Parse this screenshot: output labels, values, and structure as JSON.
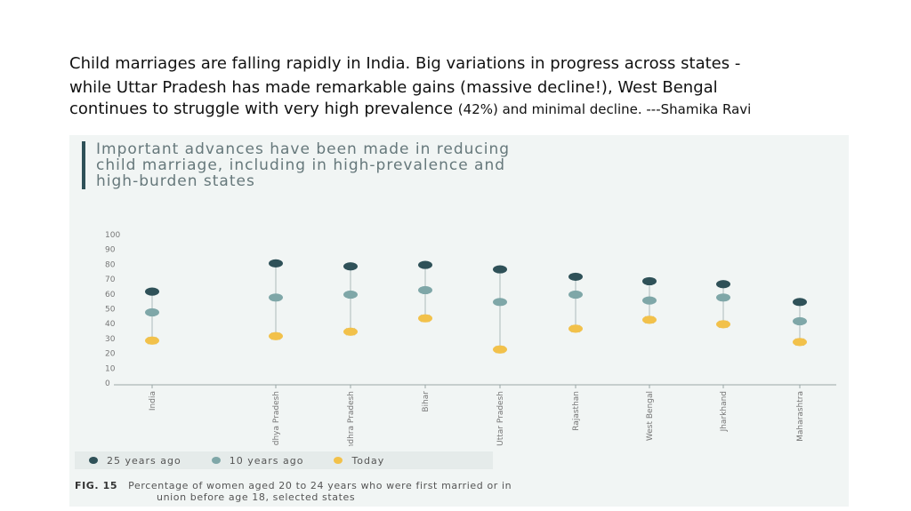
{
  "caption": {
    "line1": "Child marriages are falling rapidly in India.  Big variations in progress across states -",
    "line2": "while Uttar Pradesh has made remarkable gains (massive decline!), West Bengal",
    "line3_a": "continues to struggle with very high prevalence ",
    "line3_b": "(42%) and minimal decline. ---Shamika Ravi"
  },
  "figure": {
    "title_lines": [
      "Important advances have been made in reducing",
      "child marriage, including in high-prevalence and",
      "high-burden states"
    ],
    "caption_label": "FIG. 15",
    "caption_line1": "Percentage of women aged 20 to 24 years who were first married or in",
    "caption_line2": "union before age 18, selected states"
  },
  "colors": {
    "series_25": "#2f5158",
    "series_10": "#7fa7a8",
    "series_today": "#f2c14a",
    "stem": "#b9c4c4",
    "axis": "#9aa6a6",
    "tick_text": "#777777"
  },
  "chart_data": {
    "type": "scatter",
    "categories": [
      "India",
      "Madhya Pradesh",
      "Andhra Pradesh",
      "Bihar",
      "Uttar Pradesh",
      "Rajasthan",
      "West Bengal",
      "Jharkhand",
      "Maharashtra"
    ],
    "series": [
      {
        "name": "25 years ago",
        "values": [
          61,
          80,
          78,
          79,
          76,
          71,
          68,
          66,
          54
        ]
      },
      {
        "name": "10 years ago",
        "values": [
          47,
          57,
          59,
          62,
          54,
          59,
          55,
          57,
          41
        ]
      },
      {
        "name": "Today",
        "values": [
          28,
          31,
          34,
          43,
          22,
          36,
          42,
          39,
          27
        ]
      }
    ],
    "yticks": [
      0,
      10,
      20,
      30,
      40,
      50,
      60,
      70,
      80,
      90,
      100
    ],
    "ylim": [
      0,
      100
    ],
    "legend_position": "bottom-left",
    "grid": false
  }
}
